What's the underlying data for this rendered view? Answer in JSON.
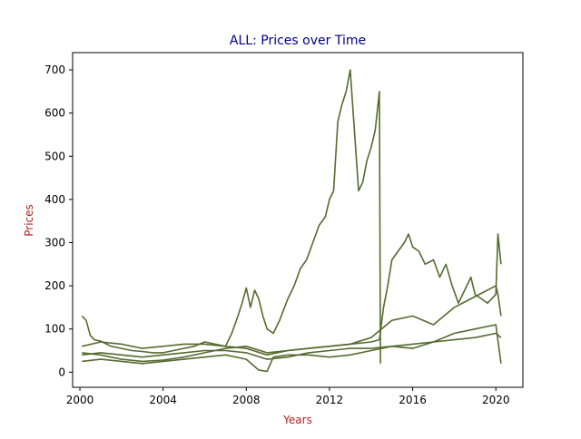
{
  "chart_data": {
    "type": "line",
    "title": "ALL: Prices over Time",
    "xlabel": "Years",
    "ylabel": "Prices",
    "xlim": [
      1999.65,
      2021.3
    ],
    "ylim": [
      -35,
      740
    ],
    "x_ticks": [
      2000,
      2004,
      2008,
      2012,
      2016,
      2020
    ],
    "y_ticks": [
      0,
      100,
      200,
      300,
      400,
      500,
      600,
      700
    ],
    "grid": false,
    "legend": "none",
    "colors": {
      "title": "#00008b",
      "axis_label": "#b22222",
      "series": "#556b2f"
    },
    "series": [
      {
        "x": [
          2000.1,
          2000.3,
          2000.5,
          2000.7,
          2001,
          2001.5,
          2002,
          2002.5,
          2003,
          2003.5,
          2004,
          2004.5,
          2005,
          2005.5,
          2006,
          2006.5,
          2007,
          2007.3,
          2007.6,
          2007.8,
          2008,
          2008.2,
          2008.4,
          2008.6,
          2008.8,
          2009,
          2009.3,
          2009.6,
          2010,
          2010.3,
          2010.6,
          2010.9,
          2011.2,
          2011.5,
          2011.8,
          2012,
          2012.2,
          2012.4,
          2012.6,
          2012.8,
          2013,
          2013.2,
          2013.4,
          2013.6,
          2013.8,
          2014,
          2014.2,
          2014.4,
          2014.45
        ],
        "y": [
          130,
          120,
          85,
          75,
          72,
          60,
          55,
          50,
          48,
          45,
          45,
          50,
          55,
          60,
          70,
          65,
          60,
          90,
          130,
          160,
          195,
          150,
          190,
          170,
          130,
          100,
          90,
          120,
          170,
          200,
          240,
          260,
          300,
          340,
          360,
          400,
          420,
          580,
          620,
          650,
          700,
          560,
          420,
          440,
          490,
          520,
          560,
          650,
          20
        ]
      },
      {
        "x": [
          2000.1,
          2001,
          2002,
          2003,
          2004,
          2005,
          2006,
          2007,
          2008,
          2009,
          2010,
          2011,
          2012,
          2013,
          2014,
          2014.4,
          2014.6,
          2014.8,
          2015,
          2015.3,
          2015.6,
          2015.8,
          2016,
          2016.3,
          2016.6,
          2017,
          2017.3,
          2017.6,
          2017.9,
          2018.2,
          2018.5,
          2018.8,
          2019,
          2019.3,
          2019.6,
          2020,
          2020.1,
          2020.25
        ],
        "y": [
          45,
          40,
          30,
          25,
          28,
          35,
          45,
          55,
          60,
          45,
          50,
          55,
          60,
          65,
          70,
          75,
          150,
          200,
          260,
          280,
          300,
          320,
          290,
          280,
          250,
          260,
          220,
          250,
          200,
          160,
          190,
          220,
          180,
          170,
          160,
          180,
          320,
          250
        ]
      },
      {
        "x": [
          2000.1,
          2001,
          2002,
          2003,
          2004,
          2005,
          2006,
          2007,
          2008,
          2009,
          2010,
          2011,
          2012,
          2013,
          2014,
          2015,
          2016,
          2017,
          2018,
          2019,
          2020,
          2020.1,
          2020.25
        ],
        "y": [
          60,
          70,
          65,
          55,
          60,
          65,
          65,
          60,
          55,
          40,
          50,
          55,
          60,
          65,
          80,
          120,
          130,
          110,
          150,
          175,
          200,
          180,
          130
        ]
      },
      {
        "x": [
          2000.1,
          2001,
          2002,
          2003,
          2004,
          2005,
          2006,
          2007,
          2008,
          2008.6,
          2009,
          2009.3,
          2010,
          2011,
          2012,
          2013,
          2014,
          2015,
          2016,
          2017,
          2018,
          2019,
          2020,
          2020.25
        ],
        "y": [
          25,
          30,
          25,
          20,
          25,
          30,
          35,
          40,
          30,
          5,
          2,
          35,
          40,
          40,
          35,
          40,
          50,
          60,
          55,
          70,
          90,
          100,
          110,
          20
        ]
      },
      {
        "x": [
          2000.1,
          2001,
          2002,
          2003,
          2004,
          2005,
          2006,
          2007,
          2008,
          2009,
          2010,
          2011,
          2012,
          2013,
          2014,
          2015,
          2016,
          2017,
          2018,
          2019,
          2020,
          2020.25
        ],
        "y": [
          40,
          45,
          40,
          35,
          40,
          45,
          50,
          50,
          45,
          30,
          35,
          45,
          50,
          55,
          55,
          60,
          65,
          70,
          75,
          80,
          90,
          80
        ]
      }
    ]
  }
}
